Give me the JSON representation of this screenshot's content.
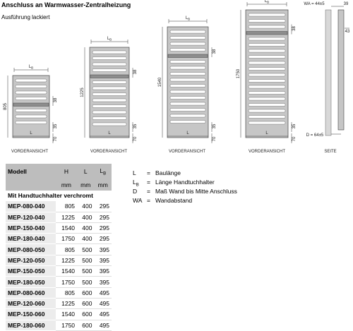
{
  "header": {
    "title": "Anschluss an Warmwasser-Zentralheizung",
    "subtitle": "Ausführung lackiert"
  },
  "views": [
    {
      "caption": "VORDERANSICHT",
      "height": "805",
      "width_label": "L",
      "holder_label": {
        "base": "L",
        "sub": "B"
      },
      "holder_dim": "38",
      "bottom_dims": [
        "35",
        "70"
      ]
    },
    {
      "caption": "VORDERANSICHT",
      "height": "1225",
      "width_label": "L",
      "holder_label": {
        "base": "L",
        "sub": "B"
      },
      "holder_dim": "38",
      "bottom_dims": [
        "35",
        "70"
      ]
    },
    {
      "caption": "VORDERANSICHT",
      "height": "1540",
      "width_label": "L",
      "holder_label": {
        "base": "L",
        "sub": "B"
      },
      "holder_dim": "38",
      "bottom_dims": [
        "35",
        "70"
      ]
    },
    {
      "caption": "VORDERANSICHT",
      "height": "1750",
      "width_label": "L",
      "holder_label": {
        "base": "L",
        "sub": "B"
      },
      "holder_dim": "38",
      "bottom_dims": [
        "35",
        "70"
      ]
    }
  ],
  "side": {
    "caption": "SEITE",
    "wa": "WA = 44±5",
    "d": "D = 64±5",
    "top_dim": "39",
    "conn_dim": "43"
  },
  "table": {
    "headers": [
      "Modell",
      "H",
      "L",
      {
        "base": "L",
        "sub": "B"
      }
    ],
    "units": [
      "mm",
      "mm",
      "mm"
    ],
    "group": "Mit Handtuchhalter verchromt",
    "rows": [
      [
        "MEP-080-040",
        "805",
        "400",
        "295"
      ],
      [
        "MEP-120-040",
        "1225",
        "400",
        "295"
      ],
      [
        "MEP-150-040",
        "1540",
        "400",
        "295"
      ],
      [
        "MEP-180-040",
        "1750",
        "400",
        "295"
      ],
      [
        "MEP-080-050",
        "805",
        "500",
        "395"
      ],
      [
        "MEP-120-050",
        "1225",
        "500",
        "395"
      ],
      [
        "MEP-150-050",
        "1540",
        "500",
        "395"
      ],
      [
        "MEP-180-050",
        "1750",
        "500",
        "395"
      ],
      [
        "MEP-080-060",
        "805",
        "600",
        "495"
      ],
      [
        "MEP-120-060",
        "1225",
        "600",
        "495"
      ],
      [
        "MEP-150-060",
        "1540",
        "600",
        "495"
      ],
      [
        "MEP-180-060",
        "1750",
        "600",
        "495"
      ]
    ]
  },
  "legend": [
    {
      "symbol": "L",
      "eq": "=",
      "text": "Baulänge"
    },
    {
      "symbol": {
        "base": "L",
        "sub": "B"
      },
      "eq": "=",
      "text": "Länge Handtuchhalter"
    },
    {
      "symbol": "D",
      "eq": "=",
      "text": "Maß Wand bis Mitte Anschluss"
    },
    {
      "symbol": "WA",
      "eq": "=",
      "text": "Wandabstand"
    }
  ]
}
